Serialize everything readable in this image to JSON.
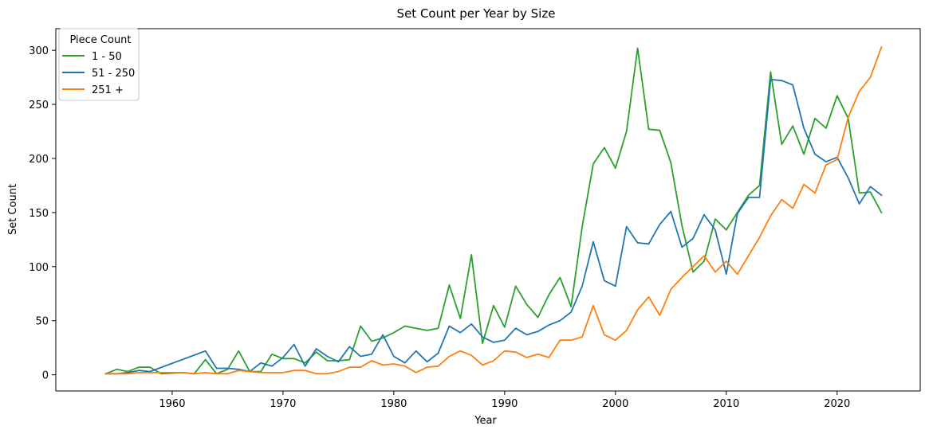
{
  "chart_data": {
    "type": "line",
    "title": "Set Count per Year by Size",
    "xlabel": "Year",
    "ylabel": "Set Count",
    "xlim": [
      1949.5,
      2027.5
    ],
    "ylim": [
      -15,
      320
    ],
    "xticks": [
      1960,
      1970,
      1980,
      1990,
      2000,
      2010,
      2020
    ],
    "yticks": [
      0,
      50,
      100,
      150,
      200,
      250,
      300
    ],
    "grid": false,
    "legend": {
      "title": "Piece Count",
      "placement": "top-left"
    },
    "series": [
      {
        "name": "1 - 50",
        "color": "#2ca02c",
        "x": [
          1954,
          1955,
          1956,
          1957,
          1958,
          1959,
          1961,
          1962,
          1963,
          1964,
          1965,
          1966,
          1967,
          1968,
          1969,
          1970,
          1971,
          1972,
          1973,
          1974,
          1975,
          1976,
          1977,
          1978,
          1979,
          1980,
          1981,
          1982,
          1983,
          1984,
          1985,
          1986,
          1987,
          1988,
          1989,
          1990,
          1991,
          1992,
          1993,
          1994,
          1995,
          1996,
          1997,
          1998,
          1999,
          2000,
          2001,
          2002,
          2003,
          2004,
          2005,
          2006,
          2007,
          2008,
          2009,
          2010,
          2011,
          2012,
          2013,
          2014,
          2015,
          2016,
          2017,
          2018,
          2019,
          2020,
          2021,
          2022,
          2023,
          2024
        ],
        "y": [
          1,
          5,
          3,
          7,
          7,
          1,
          2,
          1,
          14,
          1,
          5,
          22,
          3,
          3,
          19,
          15,
          15,
          11,
          21,
          13,
          13,
          14,
          45,
          31,
          34,
          39,
          45,
          43,
          41,
          43,
          83,
          52,
          111,
          29,
          64,
          44,
          82,
          65,
          53,
          74,
          90,
          63,
          137,
          195,
          210,
          191,
          225,
          302,
          227,
          226,
          196,
          138,
          95,
          105,
          144,
          134,
          150,
          166,
          175,
          280,
          213,
          230,
          204,
          237,
          228,
          258,
          237,
          168,
          169,
          150
        ]
      },
      {
        "name": "51 - 250",
        "color": "#1f77b4",
        "x": [
          1954,
          1955,
          1956,
          1957,
          1958,
          1963,
          1964,
          1965,
          1966,
          1967,
          1968,
          1969,
          1970,
          1971,
          1972,
          1973,
          1974,
          1975,
          1976,
          1977,
          1978,
          1979,
          1980,
          1981,
          1982,
          1983,
          1984,
          1985,
          1986,
          1987,
          1988,
          1989,
          1990,
          1991,
          1992,
          1993,
          1994,
          1995,
          1996,
          1997,
          1998,
          1999,
          2000,
          2001,
          2002,
          2003,
          2004,
          2005,
          2006,
          2007,
          2008,
          2009,
          2010,
          2011,
          2012,
          2013,
          2014,
          2015,
          2016,
          2017,
          2018,
          2019,
          2020,
          2021,
          2022,
          2023,
          2024
        ],
        "y": [
          1,
          1,
          2,
          4,
          3,
          22,
          6,
          6,
          5,
          3,
          11,
          8,
          16,
          28,
          8,
          24,
          17,
          12,
          26,
          17,
          19,
          37,
          17,
          11,
          22,
          12,
          20,
          45,
          39,
          47,
          35,
          30,
          32,
          43,
          37,
          40,
          46,
          50,
          58,
          82,
          123,
          87,
          82,
          137,
          122,
          121,
          139,
          151,
          118,
          126,
          148,
          134,
          93,
          149,
          164,
          164,
          273,
          272,
          268,
          228,
          204,
          197,
          201,
          182,
          158,
          174,
          166
        ]
      },
      {
        "name": "251 +",
        "color": "#ff7f0e",
        "x": [
          1954,
          1955,
          1956,
          1957,
          1958,
          1961,
          1962,
          1963,
          1964,
          1965,
          1966,
          1967,
          1968,
          1969,
          1970,
          1971,
          1972,
          1973,
          1974,
          1975,
          1976,
          1977,
          1978,
          1979,
          1980,
          1981,
          1982,
          1983,
          1984,
          1985,
          1986,
          1987,
          1988,
          1989,
          1990,
          1991,
          1992,
          1993,
          1994,
          1995,
          1996,
          1997,
          1998,
          1999,
          2000,
          2001,
          2002,
          2003,
          2004,
          2005,
          2006,
          2007,
          2008,
          2009,
          2010,
          2011,
          2012,
          2013,
          2014,
          2015,
          2016,
          2017,
          2018,
          2019,
          2020,
          2021,
          2022,
          2023,
          2024
        ],
        "y": [
          1,
          1,
          1,
          2,
          2,
          2,
          1,
          2,
          1,
          1,
          4,
          3,
          2,
          2,
          2,
          4,
          4,
          1,
          1,
          3,
          7,
          7,
          13,
          9,
          10,
          8,
          2,
          7,
          8,
          17,
          22,
          18,
          9,
          13,
          22,
          21,
          16,
          19,
          16,
          32,
          32,
          35,
          64,
          37,
          32,
          41,
          60,
          72,
          55,
          79,
          90,
          100,
          110,
          95,
          105,
          93,
          110,
          127,
          147,
          162,
          154,
          176,
          168,
          194,
          199,
          238,
          262,
          275,
          303
        ]
      }
    ]
  }
}
